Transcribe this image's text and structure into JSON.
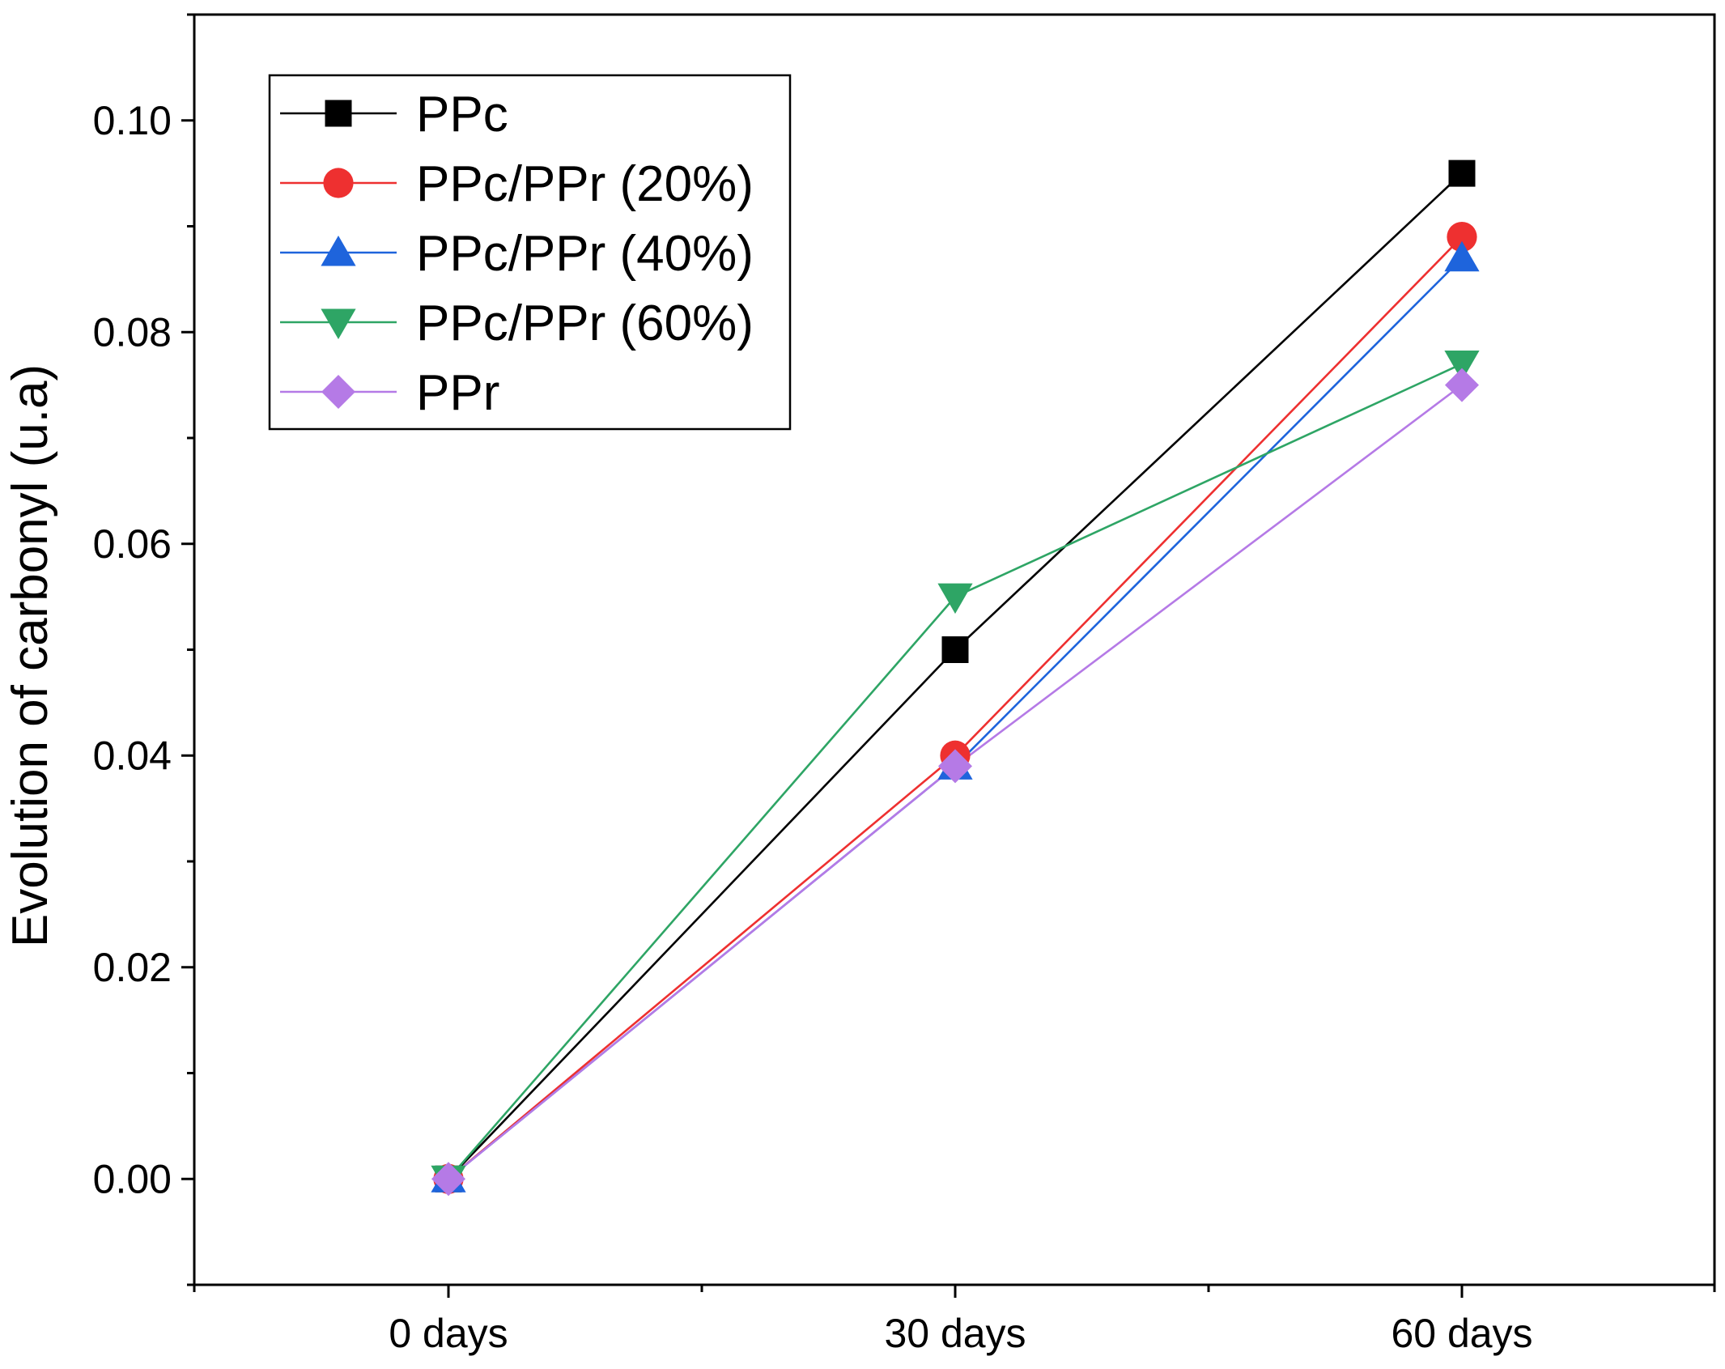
{
  "chart_data": {
    "type": "line",
    "title": "",
    "xlabel": "",
    "ylabel": "Evolution of carbonyl (u.a)",
    "categories": [
      "0 days",
      "30 days",
      "60 days"
    ],
    "ylim": [
      -0.01,
      0.11
    ],
    "yticks": [
      "0.00",
      "0.02",
      "0.04",
      "0.06",
      "0.08",
      "0.10"
    ],
    "ytick_values": [
      0.0,
      0.02,
      0.04,
      0.06,
      0.08,
      0.1
    ],
    "grid": false,
    "legend_position": "top-left",
    "series": [
      {
        "name": "PPc",
        "values": [
          0.0,
          0.05,
          0.095
        ],
        "color": "#000000",
        "marker": "square"
      },
      {
        "name": "PPc/PPr (20%)",
        "values": [
          0.0,
          0.04,
          0.089
        ],
        "color": "#ee3030",
        "marker": "circle"
      },
      {
        "name": "PPc/PPr (40%)",
        "values": [
          0.0,
          0.039,
          0.087
        ],
        "color": "#1e64dc",
        "marker": "triangle-up"
      },
      {
        "name": "PPc/PPr (60%)",
        "values": [
          0.0,
          0.055,
          0.077
        ],
        "color": "#2ea565",
        "marker": "triangle-down"
      },
      {
        "name": "PPr",
        "values": [
          0.0,
          0.039,
          0.075
        ],
        "color": "#b57ae6",
        "marker": "diamond"
      }
    ]
  }
}
